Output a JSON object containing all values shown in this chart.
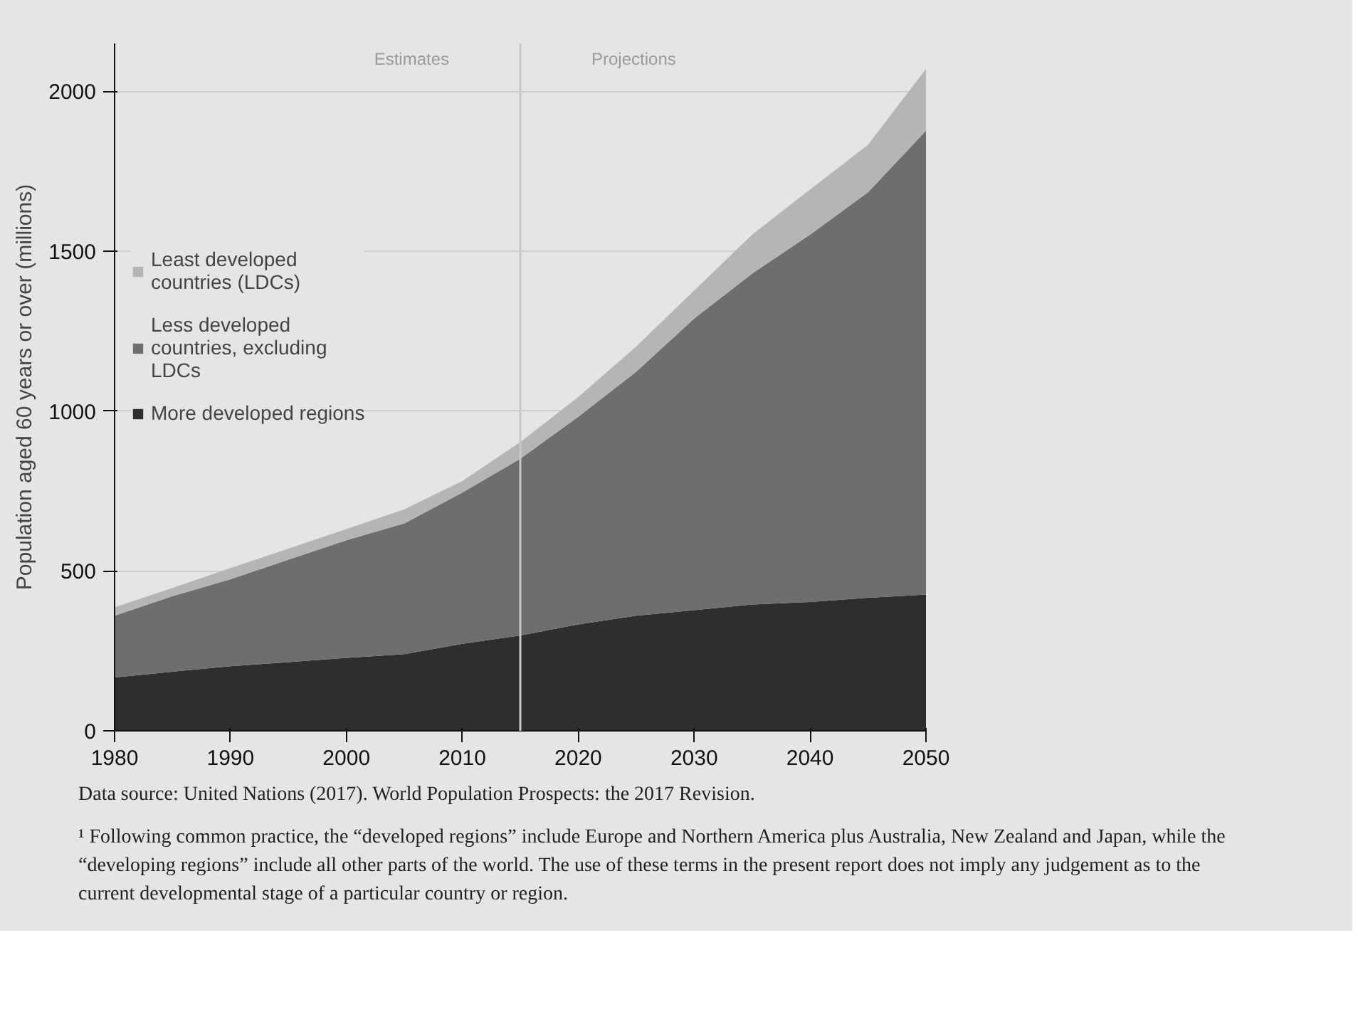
{
  "chart_data": {
    "type": "area",
    "stacked": true,
    "ylabel": "Population aged 60 years or over (millions)",
    "x": [
      1980,
      1985,
      1990,
      1995,
      2000,
      2005,
      2010,
      2015,
      2020,
      2025,
      2030,
      2035,
      2040,
      2045,
      2050
    ],
    "series": [
      {
        "name": "More developed regions",
        "color": "#2e2e2e",
        "values": [
          167,
          185,
          202,
          215,
          228,
          240,
          272,
          298,
          333,
          360,
          377,
          395,
          403,
          416,
          426
        ]
      },
      {
        "name": "Less developed countries, excluding LDCs",
        "color": "#6e6e6e",
        "values": [
          193,
          236,
          272,
          320,
          368,
          409,
          473,
          553,
          649,
          763,
          912,
          1035,
          1149,
          1268,
          1451
        ]
      },
      {
        "name": "Least developed countries (LDCs)",
        "color": "#b5b5b5",
        "values": [
          26,
          26,
          35,
          35,
          35,
          44,
          36,
          52,
          62,
          79,
          88,
          122,
          141,
          149,
          193
        ]
      }
    ],
    "xlim": [
      1980,
      2050
    ],
    "xticks": [
      1980,
      1990,
      2000,
      2010,
      2020,
      2030,
      2040,
      2050
    ],
    "ylim": [
      0,
      2150
    ],
    "yticks": [
      0,
      500,
      1000,
      1500,
      2000
    ],
    "grid": "y",
    "legend": "top left",
    "ref_lines": [
      {
        "axis": "x",
        "value": 2015,
        "color": "#c8c8c8"
      }
    ],
    "annotations": [
      "Estimates",
      "Projections",
      "Data source: United Nations (2017). World Population Prospects: the 2017 Revision.",
      "¹ Following common practice, the “developed regions” include Europe and Northern America plus Australia, New Zealand and Japan, while the “developing regions” include all other parts of the world. The use of these terms in the present report does not imply any judgement as to the current developmental stage of a particular country or region."
    ]
  }
}
